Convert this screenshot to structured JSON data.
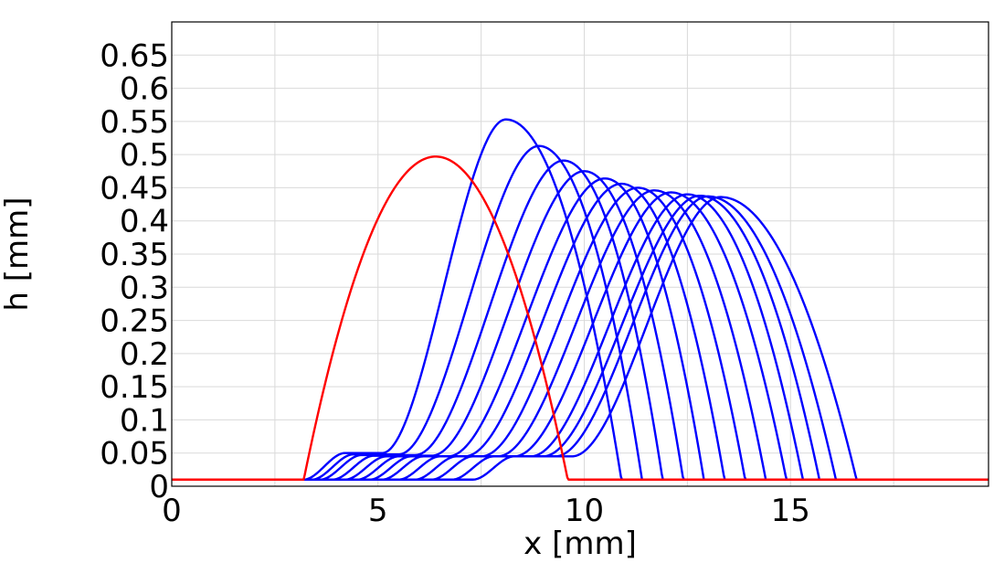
{
  "chart_data": {
    "type": "line",
    "title": "",
    "xlabel": "x [mm]",
    "ylabel": "h [mm]",
    "xlim": [
      0,
      19.8
    ],
    "ylim": [
      0,
      0.7
    ],
    "x_ticks": [
      "0",
      "5",
      "10",
      "15"
    ],
    "x_tick_values": [
      0,
      5,
      10,
      15
    ],
    "y_ticks": [
      "0",
      "0.05",
      "0.1",
      "0.15",
      "0.2",
      "0.25",
      "0.3",
      "0.35",
      "0.4",
      "0.45",
      "0.5",
      "0.55",
      "0.6",
      "0.65"
    ],
    "y_tick_values": [
      0,
      0.05,
      0.1,
      0.15,
      0.2,
      0.25,
      0.3,
      0.35,
      0.4,
      0.45,
      0.5,
      0.55,
      0.6,
      0.65
    ],
    "grid": true,
    "legend": "none",
    "precursor_film": 0.01,
    "colors": {
      "initial": "#ff0000",
      "evolved": "#0000ff"
    },
    "initial_profile": {
      "color": "#ff0000",
      "x_start": 3.2,
      "x_end": 9.6,
      "peak_x": 6.4,
      "peak": 0.497
    },
    "series": [
      {
        "color": "#0000ff",
        "rear": 3.2,
        "shoulder": 4.8,
        "front": 10.9,
        "peak_x": 8.1,
        "peak": 0.553,
        "step": 0.05
      },
      {
        "color": "#0000ff",
        "rear": 3.4,
        "shoulder": 5.2,
        "front": 11.4,
        "peak_x": 8.9,
        "peak": 0.513,
        "step": 0.048
      },
      {
        "color": "#0000ff",
        "rear": 3.6,
        "shoulder": 5.6,
        "front": 11.9,
        "peak_x": 9.5,
        "peak": 0.491,
        "step": 0.047
      },
      {
        "color": "#0000ff",
        "rear": 3.9,
        "shoulder": 6.0,
        "front": 12.4,
        "peak_x": 10.0,
        "peak": 0.475,
        "step": 0.046
      },
      {
        "color": "#0000ff",
        "rear": 4.2,
        "shoulder": 6.4,
        "front": 12.9,
        "peak_x": 10.5,
        "peak": 0.464,
        "step": 0.045
      },
      {
        "color": "#0000ff",
        "rear": 4.5,
        "shoulder": 6.8,
        "front": 13.4,
        "peak_x": 10.9,
        "peak": 0.456,
        "step": 0.045
      },
      {
        "color": "#0000ff",
        "rear": 4.8,
        "shoulder": 7.2,
        "front": 13.9,
        "peak_x": 11.3,
        "peak": 0.45,
        "step": 0.045
      },
      {
        "color": "#0000ff",
        "rear": 5.1,
        "shoulder": 7.6,
        "front": 14.4,
        "peak_x": 11.7,
        "peak": 0.446,
        "step": 0.045
      },
      {
        "color": "#0000ff",
        "rear": 5.5,
        "shoulder": 8.0,
        "front": 14.9,
        "peak_x": 12.1,
        "peak": 0.443,
        "step": 0.045
      },
      {
        "color": "#0000ff",
        "rear": 5.9,
        "shoulder": 8.4,
        "front": 15.3,
        "peak_x": 12.5,
        "peak": 0.44,
        "step": 0.045
      },
      {
        "color": "#0000ff",
        "rear": 6.3,
        "shoulder": 8.7,
        "front": 15.7,
        "peak_x": 12.8,
        "peak": 0.438,
        "step": 0.045
      },
      {
        "color": "#0000ff",
        "rear": 6.8,
        "shoulder": 9.0,
        "front": 16.1,
        "peak_x": 13.0,
        "peak": 0.437,
        "step": 0.045
      },
      {
        "color": "#0000ff",
        "rear": 7.3,
        "shoulder": 9.4,
        "front": 16.6,
        "peak_x": 13.3,
        "peak": 0.436,
        "step": 0.045
      }
    ]
  }
}
